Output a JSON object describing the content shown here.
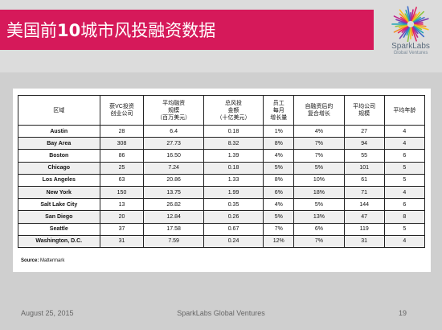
{
  "slide": {
    "title_prefix": "美国前",
    "title_number": "10",
    "title_suffix": "城市风投融资数据"
  },
  "logo": {
    "name": "SparkLabs",
    "subtitle": "Global Ventures"
  },
  "table": {
    "headers": [
      "区域",
      "获VC投资\n创业公司",
      "平均融资\n规模\n（百万美元）",
      "总风投\n金额\n（十亿美元）",
      "员工\n每月\n增长量",
      "自融资后的\n复合增长",
      "平均公司\n规模",
      "平均年龄"
    ],
    "rows": [
      [
        "Austin",
        "28",
        "6.4",
        "0.18",
        "1%",
        "4%",
        "27",
        "4"
      ],
      [
        "Bay Area",
        "308",
        "27.73",
        "8.32",
        "8%",
        "7%",
        "94",
        "4"
      ],
      [
        "Boston",
        "86",
        "16.50",
        "1.39",
        "4%",
        "7%",
        "55",
        "6"
      ],
      [
        "Chicago",
        "25",
        "7.24",
        "0.18",
        "5%",
        "5%",
        "101",
        "5"
      ],
      [
        "Los Angeles",
        "63",
        "20.86",
        "1.33",
        "8%",
        "10%",
        "61",
        "5"
      ],
      [
        "New York",
        "150",
        "13.75",
        "1.99",
        "6%",
        "18%",
        "71",
        "4"
      ],
      [
        "Salt Lake City",
        "13",
        "26.82",
        "0.35",
        "4%",
        "5%",
        "144",
        "6"
      ],
      [
        "San Diego",
        "20",
        "12.84",
        "0.26",
        "5%",
        "13%",
        "47",
        "8"
      ],
      [
        "Seattle",
        "37",
        "17.58",
        "0.67",
        "7%",
        "6%",
        "119",
        "5"
      ],
      [
        "Washington, D.C.",
        "31",
        "7.59",
        "0.24",
        "12%",
        "7%",
        "31",
        "4"
      ]
    ]
  },
  "source": {
    "label": "Source:",
    "value": "Mattermark"
  },
  "footer": {
    "date": "August 25, 2015",
    "org": "SparkLabs Global Ventures",
    "page": "19"
  },
  "colors": {
    "title_bar": "#d6195a",
    "title_text": "#ffffff",
    "background": "#cfcfcf",
    "panel": "#ffffff"
  }
}
